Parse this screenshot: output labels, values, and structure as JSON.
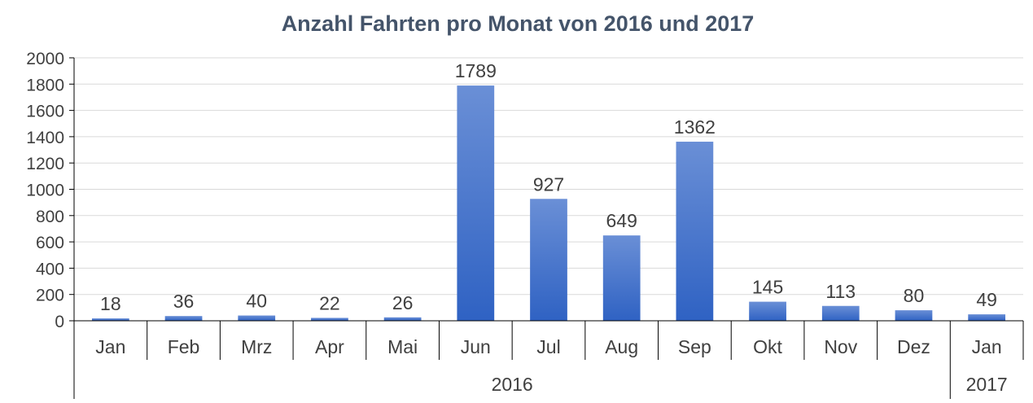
{
  "chart_data": {
    "type": "bar",
    "title": "Anzahl Fahrten pro Monat von 2016 und 2017",
    "categories": [
      "Jan",
      "Feb",
      "Mrz",
      "Apr",
      "Mai",
      "Jun",
      "Jul",
      "Aug",
      "Sep",
      "Okt",
      "Nov",
      "Dez",
      "Jan"
    ],
    "groups": [
      {
        "label": "2016",
        "count": 12
      },
      {
        "label": "2017",
        "count": 1
      }
    ],
    "values": [
      18,
      36,
      40,
      22,
      26,
      1789,
      927,
      649,
      1362,
      145,
      113,
      80,
      49
    ],
    "data_labels": [
      "18",
      "36",
      "40",
      "22",
      "26",
      "1789",
      "927",
      "649",
      "1362",
      "145",
      "113",
      "80",
      "49"
    ],
    "yticks": [
      "0",
      "200",
      "400",
      "600",
      "800",
      "1000",
      "1200",
      "1400",
      "1600",
      "1800",
      "2000"
    ],
    "ylim": [
      0,
      2000
    ],
    "grid": true,
    "legend": "none",
    "colors": {
      "bar_top": "#6a8fd6",
      "bar_bottom": "#2f62c3",
      "grid": "#d9d9d9",
      "axis": "#000000"
    }
  }
}
